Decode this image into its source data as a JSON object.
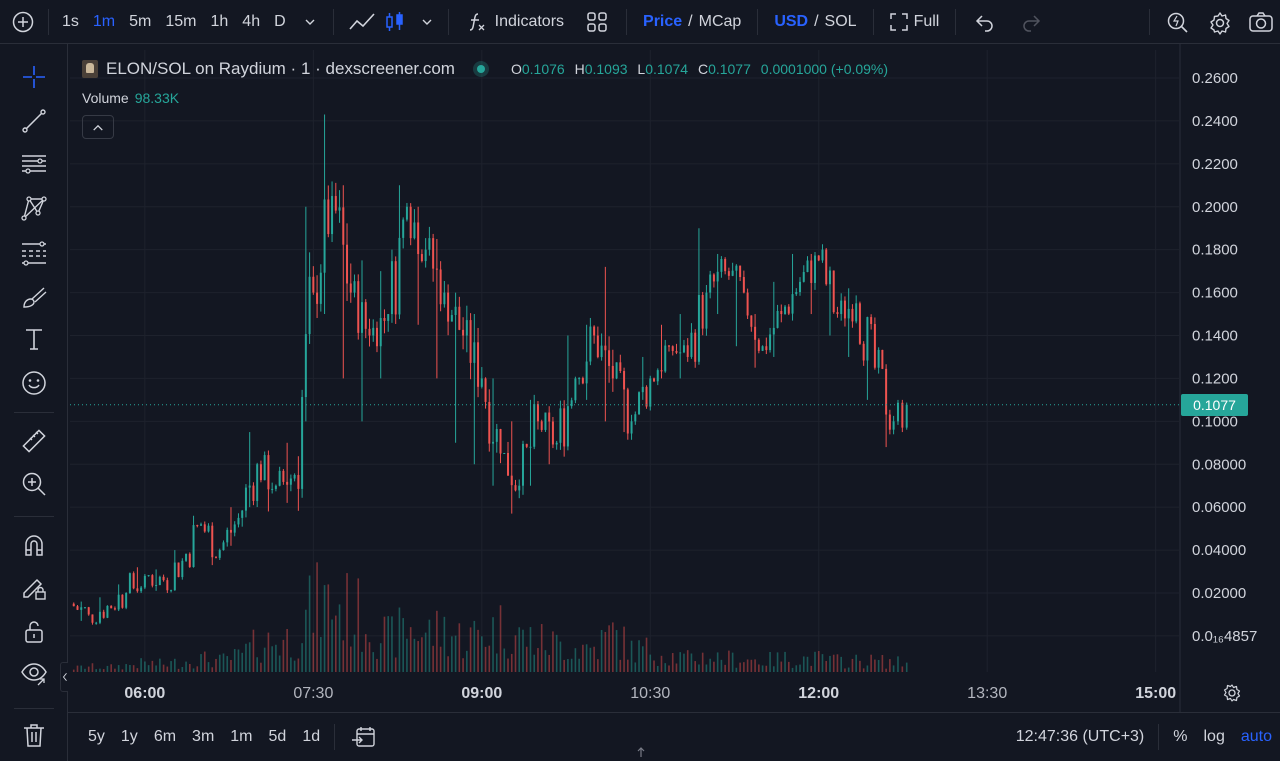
{
  "toolbar": {
    "intervals": [
      "1s",
      "1m",
      "5m",
      "15m",
      "1h",
      "4h",
      "D"
    ],
    "active_interval": "1m",
    "indicators_label": "Indicators",
    "price_label": "Price",
    "price_sep": "/",
    "mcap_label": "MCap",
    "usd_label": "USD",
    "currency_sep": "/",
    "sol_label": "SOL",
    "full_label": "Full"
  },
  "legend": {
    "title": "ELON/SOL on Raydium · 1 · dexscreener.com",
    "o_key": "O",
    "o": "0.1076",
    "h_key": "H",
    "h": "0.1093",
    "l_key": "L",
    "l": "0.1074",
    "c_key": "C",
    "c": "0.1077",
    "change": "0.0001000 (+0.09%)",
    "volume_label": "Volume",
    "volume_value": "98.33K"
  },
  "bottombar": {
    "ranges": [
      "5y",
      "1y",
      "6m",
      "3m",
      "1m",
      "5d",
      "1d"
    ],
    "time": "12:47:36 (UTC+3)",
    "percent": "%",
    "log": "log",
    "auto": "auto"
  },
  "colors": {
    "up": "#26a69a",
    "down": "#ef5350",
    "bg": "#131722",
    "grid": "#1e222d",
    "accent": "#2962ff"
  },
  "chart_data": {
    "type": "candlestick",
    "last_price": "0.1077",
    "y_axis_labels": [
      "0.2600",
      "0.2400",
      "0.2200",
      "0.2000",
      "0.1800",
      "0.1600",
      "0.1400",
      "0.1200",
      "0.1000",
      "0.08000",
      "0.06000",
      "0.04000",
      "0.02000",
      "0.0₁₆4857"
    ],
    "y_axis_values": [
      0.26,
      0.24,
      0.22,
      0.2,
      0.18,
      0.16,
      0.14,
      0.12,
      0.1,
      0.08,
      0.06,
      0.04,
      0.02,
      0.0
    ],
    "ylim": [
      0.0,
      0.265
    ],
    "x_axis_labels": [
      "06:00",
      "07:30",
      "09:00",
      "10:30",
      "12:00",
      "13:30",
      "15:00"
    ],
    "x_range": [
      "05:20",
      "15:13"
    ],
    "series": [
      {
        "x": [
          "05:20",
          "05:30",
          "05:40",
          "05:50",
          "06:00",
          "06:10",
          "06:20",
          "06:30",
          "06:40",
          "06:50",
          "07:00",
          "07:10",
          "07:20",
          "07:30",
          "07:40",
          "07:50",
          "08:00",
          "08:10",
          "08:20",
          "08:30",
          "08:40",
          "08:50",
          "09:00",
          "09:10",
          "09:20",
          "09:30",
          "09:40",
          "09:50",
          "10:00",
          "10:10",
          "10:20",
          "10:30",
          "10:40",
          "10:50",
          "11:00",
          "11:10",
          "11:20",
          "11:30",
          "11:40",
          "11:50",
          "12:00",
          "12:10",
          "12:20",
          "12:30",
          "12:40",
          "12:47"
        ],
        "close": [
          0.015,
          0.01,
          0.014,
          0.02,
          0.028,
          0.026,
          0.035,
          0.052,
          0.04,
          0.055,
          0.08,
          0.07,
          0.075,
          0.16,
          0.205,
          0.16,
          0.14,
          0.15,
          0.2,
          0.18,
          0.16,
          0.14,
          0.12,
          0.085,
          0.07,
          0.1,
          0.09,
          0.12,
          0.14,
          0.12,
          0.1,
          0.12,
          0.135,
          0.13,
          0.16,
          0.17,
          0.16,
          0.135,
          0.15,
          0.165,
          0.175,
          0.15,
          0.155,
          0.125,
          0.1,
          0.1077
        ],
        "high": [
          0.017,
          0.016,
          0.018,
          0.024,
          0.032,
          0.031,
          0.04,
          0.056,
          0.048,
          0.06,
          0.095,
          0.085,
          0.09,
          0.2,
          0.243,
          0.21,
          0.175,
          0.17,
          0.21,
          0.2,
          0.185,
          0.16,
          0.15,
          0.12,
          0.1,
          0.11,
          0.105,
          0.14,
          0.145,
          0.172,
          0.125,
          0.13,
          0.145,
          0.15,
          0.19,
          0.178,
          0.168,
          0.15,
          0.165,
          0.178,
          0.178,
          0.165,
          0.162,
          0.14,
          0.112,
          0.11
        ],
        "low": [
          0.012,
          0.007,
          0.01,
          0.016,
          0.024,
          0.021,
          0.028,
          0.04,
          0.033,
          0.042,
          0.06,
          0.058,
          0.062,
          0.1,
          0.15,
          0.12,
          0.1,
          0.12,
          0.15,
          0.145,
          0.12,
          0.09,
          0.08,
          0.07,
          0.057,
          0.07,
          0.08,
          0.1,
          0.11,
          0.1,
          0.095,
          0.11,
          0.12,
          0.12,
          0.15,
          0.15,
          0.135,
          0.125,
          0.13,
          0.15,
          0.15,
          0.14,
          0.13,
          0.11,
          0.088,
          0.095
        ]
      }
    ],
    "volume": [
      3,
      5,
      4,
      6,
      8,
      7,
      9,
      12,
      10,
      14,
      25,
      28,
      30,
      60,
      62,
      55,
      45,
      30,
      40,
      35,
      38,
      30,
      35,
      40,
      32,
      28,
      25,
      22,
      22,
      35,
      20,
      20,
      15,
      12,
      14,
      12,
      12,
      10,
      12,
      12,
      12,
      10,
      10,
      10,
      9,
      8
    ]
  }
}
